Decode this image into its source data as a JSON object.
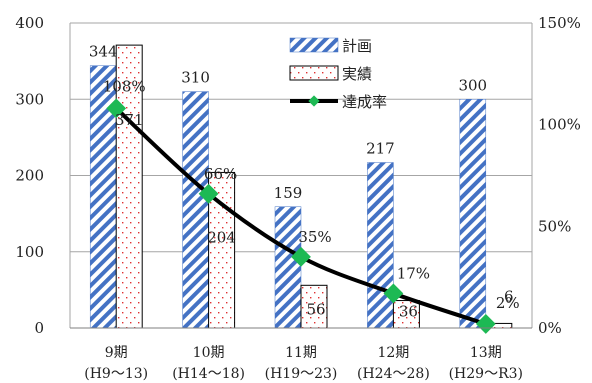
{
  "chart_data": {
    "type": "bar",
    "categories": [
      [
        "9期",
        "(H9～13)"
      ],
      [
        "10期",
        "(H14～18)"
      ],
      [
        "11期",
        "(H19～23)"
      ],
      [
        "12期",
        "(H24～28)"
      ],
      [
        "13期",
        "(H29～R3)"
      ]
    ],
    "series": [
      {
        "name": "計画",
        "type": "bar",
        "axis": "left",
        "pattern": "diagonal-stripes",
        "color": "#4472c4",
        "values": [
          344,
          310,
          159,
          217,
          300
        ],
        "labels": [
          "344",
          "310",
          "159",
          "217",
          "300"
        ]
      },
      {
        "name": "実績",
        "type": "bar",
        "axis": "left",
        "pattern": "red-dots",
        "color": "#e03030",
        "values": [
          371,
          204,
          56,
          36,
          6
        ],
        "labels": [
          "371",
          "204",
          "56",
          "36",
          "6"
        ]
      },
      {
        "name": "達成率",
        "type": "line",
        "axis": "right",
        "color": "#000000",
        "marker_color": "#1db954",
        "values": [
          108,
          66,
          35,
          17,
          2
        ],
        "labels": [
          "108%",
          "66%",
          "35%",
          "17%",
          "2%"
        ]
      }
    ],
    "y_left": {
      "min": 0,
      "max": 400,
      "ticks": [
        "0",
        "100",
        "200",
        "300",
        "400"
      ]
    },
    "y_right": {
      "min": 0,
      "max": 150,
      "ticks": [
        "0%",
        "50%",
        "100%",
        "150%"
      ]
    },
    "grid": true,
    "legend_position": "top-right"
  }
}
